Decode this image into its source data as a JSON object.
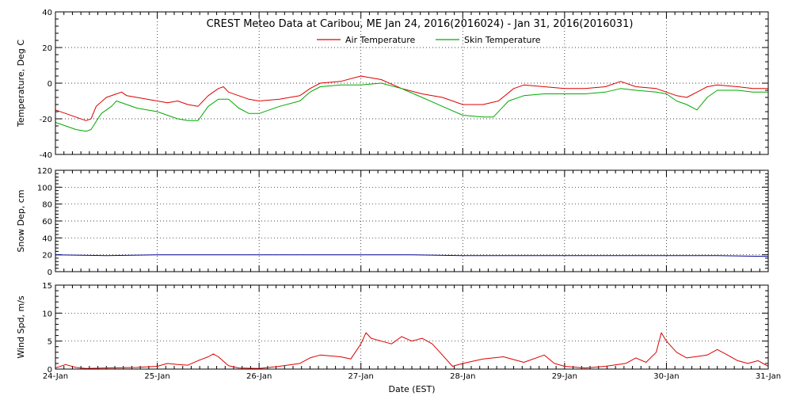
{
  "title": "CREST Meteo Data at Caribou, ME   Jan 24, 2016(2016024) - Jan 31, 2016(2016031)",
  "xlabel": "Date (EST)",
  "x_ticks": [
    "24-Jan",
    "25-Jan",
    "26-Jan",
    "27-Jan",
    "28-Jan",
    "29-Jan",
    "30-Jan",
    "31-Jan"
  ],
  "legend": [
    {
      "label": "Air Temperature",
      "color": "#dd0000"
    },
    {
      "label": "Skin Temperature",
      "color": "#00aa00"
    }
  ],
  "chart_data": [
    {
      "type": "line",
      "ylabel": "Temperature, Deg C",
      "ylim": [
        -40,
        40
      ],
      "yticks": [
        -40,
        -20,
        0,
        20,
        40
      ],
      "grid": true,
      "legend_position": "top-center",
      "series": [
        {
          "name": "Air Temperature",
          "color": "#dd0000",
          "points": [
            [
              0,
              -15
            ],
            [
              0.1,
              -17
            ],
            [
              0.2,
              -19
            ],
            [
              0.3,
              -21
            ],
            [
              0.35,
              -20
            ],
            [
              0.4,
              -13
            ],
            [
              0.5,
              -8
            ],
            [
              0.6,
              -6
            ],
            [
              0.65,
              -5
            ],
            [
              0.7,
              -7
            ],
            [
              0.8,
              -8
            ],
            [
              0.9,
              -9
            ],
            [
              1.0,
              -10
            ],
            [
              1.1,
              -11
            ],
            [
              1.2,
              -10
            ],
            [
              1.3,
              -12
            ],
            [
              1.4,
              -13
            ],
            [
              1.5,
              -7
            ],
            [
              1.6,
              -3
            ],
            [
              1.65,
              -2
            ],
            [
              1.7,
              -5
            ],
            [
              1.8,
              -7
            ],
            [
              1.9,
              -9
            ],
            [
              2.0,
              -10
            ],
            [
              2.2,
              -9
            ],
            [
              2.4,
              -7
            ],
            [
              2.5,
              -3
            ],
            [
              2.6,
              0
            ],
            [
              2.8,
              1
            ],
            [
              3.0,
              4
            ],
            [
              3.2,
              2
            ],
            [
              3.4,
              -3
            ],
            [
              3.6,
              -6
            ],
            [
              3.8,
              -8
            ],
            [
              4.0,
              -12
            ],
            [
              4.2,
              -12
            ],
            [
              4.35,
              -10
            ],
            [
              4.5,
              -3
            ],
            [
              4.6,
              -1
            ],
            [
              4.8,
              -2
            ],
            [
              5.0,
              -3
            ],
            [
              5.2,
              -3
            ],
            [
              5.4,
              -2
            ],
            [
              5.55,
              1
            ],
            [
              5.7,
              -2
            ],
            [
              5.9,
              -3
            ],
            [
              6.0,
              -5
            ],
            [
              6.1,
              -7
            ],
            [
              6.2,
              -8
            ],
            [
              6.3,
              -5
            ],
            [
              6.4,
              -2
            ],
            [
              6.5,
              -1
            ],
            [
              6.7,
              -2
            ],
            [
              6.85,
              -3
            ],
            [
              7.0,
              -3
            ]
          ]
        },
        {
          "name": "Skin Temperature",
          "color": "#00aa00",
          "points": [
            [
              0,
              -22
            ],
            [
              0.1,
              -24
            ],
            [
              0.2,
              -26
            ],
            [
              0.3,
              -27
            ],
            [
              0.35,
              -26
            ],
            [
              0.45,
              -17
            ],
            [
              0.55,
              -13
            ],
            [
              0.6,
              -10
            ],
            [
              0.7,
              -12
            ],
            [
              0.8,
              -14
            ],
            [
              0.9,
              -15
            ],
            [
              1.0,
              -16
            ],
            [
              1.1,
              -18
            ],
            [
              1.2,
              -20
            ],
            [
              1.3,
              -21
            ],
            [
              1.4,
              -21
            ],
            [
              1.5,
              -13
            ],
            [
              1.6,
              -9
            ],
            [
              1.7,
              -9
            ],
            [
              1.8,
              -14
            ],
            [
              1.9,
              -17
            ],
            [
              2.0,
              -17
            ],
            [
              2.2,
              -13
            ],
            [
              2.4,
              -10
            ],
            [
              2.5,
              -5
            ],
            [
              2.6,
              -2
            ],
            [
              2.8,
              -1
            ],
            [
              3.0,
              -1
            ],
            [
              3.2,
              0
            ],
            [
              3.4,
              -3
            ],
            [
              3.6,
              -8
            ],
            [
              3.8,
              -13
            ],
            [
              4.0,
              -18
            ],
            [
              4.2,
              -19
            ],
            [
              4.3,
              -19
            ],
            [
              4.45,
              -10
            ],
            [
              4.6,
              -7
            ],
            [
              4.8,
              -6
            ],
            [
              5.0,
              -6
            ],
            [
              5.2,
              -6
            ],
            [
              5.4,
              -5
            ],
            [
              5.55,
              -3
            ],
            [
              5.7,
              -4
            ],
            [
              5.9,
              -5
            ],
            [
              6.0,
              -6
            ],
            [
              6.1,
              -10
            ],
            [
              6.2,
              -12
            ],
            [
              6.3,
              -15
            ],
            [
              6.4,
              -8
            ],
            [
              6.5,
              -4
            ],
            [
              6.7,
              -4
            ],
            [
              6.85,
              -5
            ],
            [
              7.0,
              -5
            ]
          ]
        }
      ]
    },
    {
      "type": "line",
      "ylabel": "Snow Dep, cm",
      "ylim": [
        0,
        120
      ],
      "yticks": [
        0,
        20,
        40,
        60,
        80,
        100,
        120
      ],
      "grid": true,
      "series": [
        {
          "color": "#000099",
          "points": [
            [
              0,
              20
            ],
            [
              0.5,
              19
            ],
            [
              1.0,
              20
            ],
            [
              1.5,
              20
            ],
            [
              2.0,
              20
            ],
            [
              2.5,
              20
            ],
            [
              3.0,
              20
            ],
            [
              3.5,
              20
            ],
            [
              4.0,
              19
            ],
            [
              4.5,
              19
            ],
            [
              5.0,
              19
            ],
            [
              5.5,
              19
            ],
            [
              6.0,
              19
            ],
            [
              6.5,
              19
            ],
            [
              7.0,
              18
            ]
          ]
        }
      ]
    },
    {
      "type": "line",
      "ylabel": "Wind Spd, m/s",
      "ylim": [
        0,
        15
      ],
      "yticks": [
        0,
        5,
        10,
        15
      ],
      "grid": true,
      "series": [
        {
          "color": "#dd0000",
          "points": [
            [
              0,
              0.2
            ],
            [
              0.1,
              0.8
            ],
            [
              0.2,
              0.3
            ],
            [
              0.3,
              0.1
            ],
            [
              0.5,
              0.2
            ],
            [
              0.8,
              0.3
            ],
            [
              1.0,
              0.5
            ],
            [
              1.1,
              1.0
            ],
            [
              1.2,
              0.8
            ],
            [
              1.3,
              0.7
            ],
            [
              1.4,
              1.5
            ],
            [
              1.5,
              2.2
            ],
            [
              1.55,
              2.7
            ],
            [
              1.6,
              2.2
            ],
            [
              1.7,
              0.6
            ],
            [
              1.8,
              0.2
            ],
            [
              2.0,
              0.1
            ],
            [
              2.2,
              0.5
            ],
            [
              2.4,
              1.0
            ],
            [
              2.5,
              2.0
            ],
            [
              2.6,
              2.5
            ],
            [
              2.8,
              2.2
            ],
            [
              2.9,
              1.8
            ],
            [
              3.0,
              4.5
            ],
            [
              3.05,
              6.5
            ],
            [
              3.1,
              5.5
            ],
            [
              3.2,
              5.0
            ],
            [
              3.3,
              4.5
            ],
            [
              3.4,
              5.8
            ],
            [
              3.5,
              5.0
            ],
            [
              3.6,
              5.5
            ],
            [
              3.7,
              4.5
            ],
            [
              3.8,
              2.5
            ],
            [
              3.9,
              0.5
            ],
            [
              4.0,
              1.0
            ],
            [
              4.2,
              1.8
            ],
            [
              4.4,
              2.2
            ],
            [
              4.6,
              1.2
            ],
            [
              4.8,
              2.5
            ],
            [
              4.9,
              1.0
            ],
            [
              5.0,
              0.5
            ],
            [
              5.2,
              0.2
            ],
            [
              5.4,
              0.5
            ],
            [
              5.6,
              1.0
            ],
            [
              5.7,
              2.0
            ],
            [
              5.8,
              1.2
            ],
            [
              5.9,
              3.0
            ],
            [
              5.95,
              6.5
            ],
            [
              6.0,
              5.0
            ],
            [
              6.1,
              3.0
            ],
            [
              6.2,
              2.0
            ],
            [
              6.4,
              2.5
            ],
            [
              6.5,
              3.5
            ],
            [
              6.6,
              2.5
            ],
            [
              6.7,
              1.5
            ],
            [
              6.8,
              1.0
            ],
            [
              6.9,
              1.5
            ],
            [
              7.0,
              0.5
            ]
          ]
        }
      ]
    }
  ]
}
